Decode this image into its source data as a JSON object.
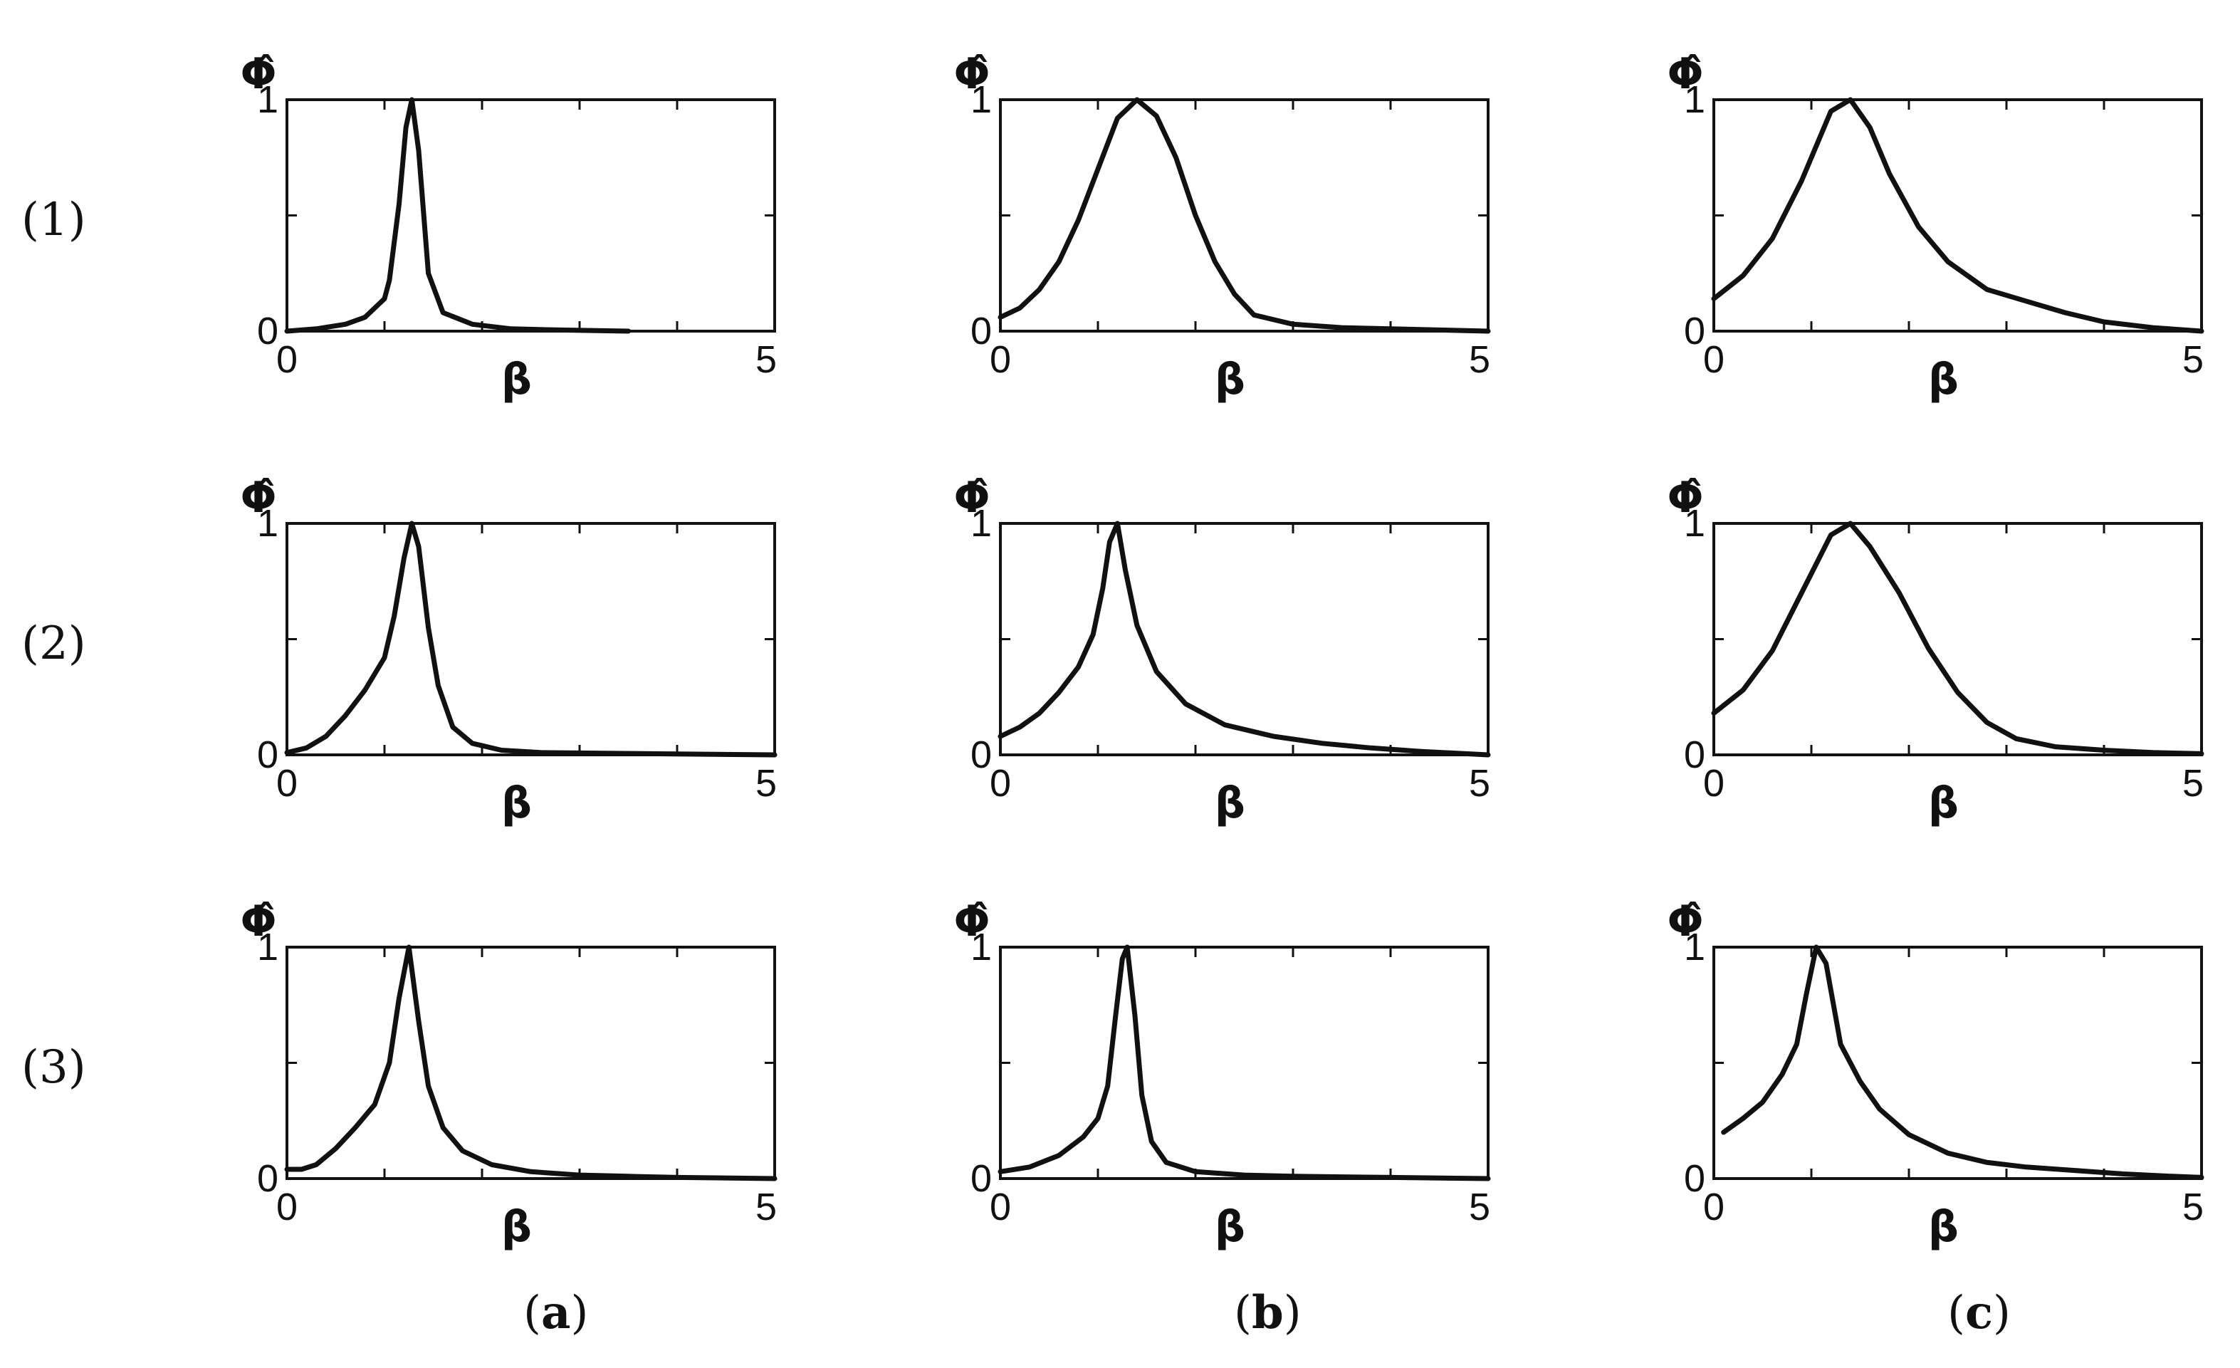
{
  "row_labels": [
    "(1)",
    "(2)",
    "(3)"
  ],
  "column_labels": [
    {
      "open": "(",
      "letter": "a",
      "close": ")"
    },
    {
      "open": "(",
      "letter": "b",
      "close": ")"
    },
    {
      "open": "(",
      "letter": "c",
      "close": ")"
    }
  ],
  "chart_data": [
    {
      "type": "line",
      "row": "(1)",
      "column": "a",
      "xlabel": "β",
      "ylabel": "Φ̂",
      "xlim": [
        0,
        5
      ],
      "ylim": [
        0,
        1
      ],
      "x_ticks": [
        "0",
        "5"
      ],
      "y_ticks": [
        "0",
        "1"
      ],
      "series": [
        {
          "x": [
            0,
            0.3,
            0.6,
            0.8,
            1.0,
            1.05,
            1.15,
            1.22,
            1.28,
            1.35,
            1.45,
            1.6,
            1.9,
            2.3,
            2.8,
            3.5
          ],
          "y": [
            0.0,
            0.01,
            0.03,
            0.06,
            0.14,
            0.22,
            0.55,
            0.88,
            1.0,
            0.78,
            0.25,
            0.08,
            0.03,
            0.01,
            0.005,
            0.0
          ]
        }
      ]
    },
    {
      "type": "line",
      "row": "(1)",
      "column": "b",
      "xlabel": "β",
      "ylabel": "Φ̂",
      "xlim": [
        0,
        5
      ],
      "ylim": [
        0,
        1
      ],
      "x_ticks": [
        "0",
        "5"
      ],
      "y_ticks": [
        "0",
        "1"
      ],
      "series": [
        {
          "x": [
            0,
            0.2,
            0.4,
            0.6,
            0.8,
            1.0,
            1.2,
            1.4,
            1.6,
            1.8,
            2.0,
            2.2,
            2.4,
            2.6,
            3.0,
            3.5,
            4.0,
            4.5,
            5.0
          ],
          "y": [
            0.06,
            0.1,
            0.18,
            0.3,
            0.48,
            0.7,
            0.92,
            1.0,
            0.93,
            0.75,
            0.5,
            0.3,
            0.16,
            0.07,
            0.03,
            0.015,
            0.01,
            0.005,
            0.0
          ]
        }
      ]
    },
    {
      "type": "line",
      "row": "(1)",
      "column": "c",
      "xlabel": "β",
      "ylabel": "Φ̂",
      "xlim": [
        0,
        5
      ],
      "ylim": [
        0,
        1
      ],
      "x_ticks": [
        "0",
        "5"
      ],
      "y_ticks": [
        "0",
        "1"
      ],
      "series": [
        {
          "x": [
            0,
            0.3,
            0.6,
            0.9,
            1.2,
            1.4,
            1.6,
            1.8,
            2.1,
            2.4,
            2.8,
            3.2,
            3.6,
            4.0,
            4.5,
            5.0
          ],
          "y": [
            0.14,
            0.24,
            0.4,
            0.65,
            0.95,
            1.0,
            0.88,
            0.68,
            0.45,
            0.3,
            0.18,
            0.13,
            0.08,
            0.04,
            0.015,
            0.0
          ]
        }
      ]
    },
    {
      "type": "line",
      "row": "(2)",
      "column": "a",
      "xlabel": "β",
      "ylabel": "Φ̂",
      "xlim": [
        0,
        5
      ],
      "ylim": [
        0,
        1
      ],
      "x_ticks": [
        "0",
        "5"
      ],
      "y_ticks": [
        "0",
        "1"
      ],
      "series": [
        {
          "x": [
            0,
            0.2,
            0.4,
            0.6,
            0.8,
            1.0,
            1.1,
            1.2,
            1.28,
            1.35,
            1.45,
            1.55,
            1.7,
            1.9,
            2.2,
            2.6,
            3.0,
            4.0,
            5.0
          ],
          "y": [
            0.01,
            0.03,
            0.08,
            0.17,
            0.28,
            0.42,
            0.6,
            0.85,
            1.0,
            0.9,
            0.55,
            0.3,
            0.12,
            0.05,
            0.02,
            0.01,
            0.008,
            0.004,
            0.0
          ]
        }
      ]
    },
    {
      "type": "line",
      "row": "(2)",
      "column": "b",
      "xlabel": "β",
      "ylabel": "Φ̂",
      "xlim": [
        0,
        5
      ],
      "ylim": [
        0,
        1
      ],
      "x_ticks": [
        "0",
        "5"
      ],
      "y_ticks": [
        "0",
        "1"
      ],
      "series": [
        {
          "x": [
            0,
            0.2,
            0.4,
            0.6,
            0.8,
            0.95,
            1.05,
            1.12,
            1.2,
            1.28,
            1.4,
            1.6,
            1.9,
            2.3,
            2.8,
            3.3,
            3.8,
            4.3,
            5.0
          ],
          "y": [
            0.08,
            0.12,
            0.18,
            0.27,
            0.38,
            0.52,
            0.72,
            0.92,
            1.0,
            0.8,
            0.56,
            0.36,
            0.22,
            0.13,
            0.08,
            0.05,
            0.03,
            0.015,
            0.0
          ]
        }
      ]
    },
    {
      "type": "line",
      "row": "(2)",
      "column": "c",
      "xlabel": "β",
      "ylabel": "Φ̂",
      "xlim": [
        0,
        5
      ],
      "ylim": [
        0,
        1
      ],
      "x_ticks": [
        "0",
        "5"
      ],
      "y_ticks": [
        "0",
        "1"
      ],
      "series": [
        {
          "x": [
            0,
            0.3,
            0.6,
            0.9,
            1.2,
            1.4,
            1.6,
            1.9,
            2.2,
            2.5,
            2.8,
            3.1,
            3.5,
            4.0,
            4.5,
            5.0
          ],
          "y": [
            0.18,
            0.28,
            0.45,
            0.7,
            0.95,
            1.0,
            0.9,
            0.7,
            0.46,
            0.27,
            0.14,
            0.07,
            0.035,
            0.02,
            0.01,
            0.005
          ]
        }
      ]
    },
    {
      "type": "line",
      "row": "(3)",
      "column": "a",
      "xlabel": "β",
      "ylabel": "Φ̂",
      "xlim": [
        0,
        5
      ],
      "ylim": [
        0,
        1
      ],
      "x_ticks": [
        "0",
        "5"
      ],
      "y_ticks": [
        "0",
        "1"
      ],
      "series": [
        {
          "x": [
            0,
            0.15,
            0.3,
            0.5,
            0.7,
            0.9,
            1.05,
            1.15,
            1.25,
            1.35,
            1.45,
            1.6,
            1.8,
            2.1,
            2.5,
            3.0,
            3.5,
            4.0,
            5.0
          ],
          "y": [
            0.04,
            0.04,
            0.06,
            0.13,
            0.22,
            0.32,
            0.5,
            0.78,
            1.0,
            0.68,
            0.4,
            0.22,
            0.12,
            0.06,
            0.03,
            0.015,
            0.01,
            0.005,
            0.0
          ]
        }
      ]
    },
    {
      "type": "line",
      "row": "(3)",
      "column": "b",
      "xlabel": "β",
      "ylabel": "Φ̂",
      "xlim": [
        0,
        5
      ],
      "ylim": [
        0,
        1
      ],
      "x_ticks": [
        "0",
        "5"
      ],
      "y_ticks": [
        "0",
        "1"
      ],
      "series": [
        {
          "x": [
            0,
            0.3,
            0.6,
            0.85,
            1.0,
            1.1,
            1.18,
            1.25,
            1.3,
            1.38,
            1.45,
            1.55,
            1.7,
            2.0,
            2.5,
            3.0,
            4.0,
            5.0
          ],
          "y": [
            0.03,
            0.05,
            0.1,
            0.18,
            0.26,
            0.4,
            0.7,
            0.95,
            1.0,
            0.7,
            0.36,
            0.16,
            0.07,
            0.03,
            0.015,
            0.01,
            0.005,
            0.0
          ]
        }
      ]
    },
    {
      "type": "line",
      "row": "(3)",
      "column": "c",
      "xlabel": "β",
      "ylabel": "Φ̂",
      "xlim": [
        0,
        5
      ],
      "ylim": [
        0,
        1
      ],
      "x_ticks": [
        "0",
        "5"
      ],
      "y_ticks": [
        "0",
        "1"
      ],
      "series": [
        {
          "x": [
            0.1,
            0.3,
            0.5,
            0.7,
            0.85,
            0.95,
            1.05,
            1.15,
            1.3,
            1.5,
            1.7,
            2.0,
            2.4,
            2.8,
            3.2,
            3.7,
            4.2,
            4.7,
            5.0
          ],
          "y": [
            0.2,
            0.26,
            0.33,
            0.45,
            0.58,
            0.8,
            1.0,
            0.93,
            0.58,
            0.42,
            0.3,
            0.19,
            0.11,
            0.07,
            0.05,
            0.035,
            0.02,
            0.01,
            0.005
          ]
        }
      ]
    }
  ]
}
